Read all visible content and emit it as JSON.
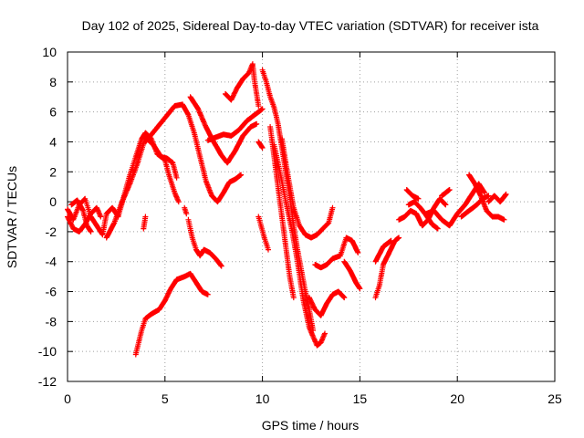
{
  "chart_data": {
    "type": "scatter",
    "title": "Day 102 of 2025, Sidereal Day-to-day VTEC variation (SDTVAR) for receiver ista",
    "xlabel": "GPS time / hours",
    "ylabel": "SDTVAR / TECUs",
    "xlim": [
      0,
      25
    ],
    "ylim": [
      -12,
      10
    ],
    "xticks": [
      0,
      5,
      10,
      15,
      20,
      25
    ],
    "yticks": [
      -12,
      -10,
      -8,
      -6,
      -4,
      -2,
      0,
      2,
      4,
      6,
      8,
      10
    ],
    "grid": true,
    "marker": "+",
    "series_color": "#ff0000",
    "tracks": [
      {
        "name": "track-1",
        "points": [
          [
            0.0,
            -0.5
          ],
          [
            0.3,
            -1.2
          ],
          [
            0.6,
            -0.2
          ],
          [
            0.9,
            0.2
          ],
          [
            1.2,
            -1.0
          ],
          [
            1.5,
            -1.6
          ],
          [
            1.8,
            -2.2
          ],
          [
            2.0,
            -0.8
          ],
          [
            2.3,
            -0.4
          ],
          [
            2.6,
            -1.0
          ],
          [
            2.9,
            0.4
          ],
          [
            3.2,
            1.8
          ],
          [
            3.5,
            3.0
          ],
          [
            3.8,
            4.2
          ],
          [
            4.0,
            4.6
          ],
          [
            4.3,
            4.2
          ],
          [
            4.6,
            3.2
          ],
          [
            5.0,
            2.8
          ],
          [
            5.2,
            1.8
          ],
          [
            5.5,
            0.6
          ],
          [
            5.7,
            0.0
          ]
        ]
      },
      {
        "name": "track-2",
        "points": [
          [
            0.0,
            -1.0
          ],
          [
            0.3,
            -1.8
          ],
          [
            0.6,
            -2.0
          ],
          [
            0.9,
            -1.5
          ],
          [
            1.2,
            -0.8
          ],
          [
            1.5,
            -0.4
          ],
          [
            1.7,
            -1.0
          ]
        ]
      },
      {
        "name": "track-3",
        "points": [
          [
            0.2,
            -0.2
          ],
          [
            0.5,
            0.1
          ],
          [
            0.8,
            -0.6
          ],
          [
            1.0,
            -1.6
          ],
          [
            1.2,
            -2.0
          ]
        ]
      },
      {
        "name": "track-4",
        "points": [
          [
            2.0,
            -2.4
          ],
          [
            2.4,
            -1.4
          ],
          [
            2.8,
            0.0
          ],
          [
            3.2,
            1.2
          ],
          [
            3.6,
            2.6
          ],
          [
            4.0,
            4.3
          ],
          [
            4.4,
            3.8
          ],
          [
            4.8,
            3.0
          ],
          [
            5.1,
            2.9
          ],
          [
            5.4,
            2.6
          ],
          [
            5.6,
            1.6
          ]
        ]
      },
      {
        "name": "track-5",
        "points": [
          [
            4.0,
            4.0
          ],
          [
            4.5,
            4.8
          ],
          [
            5.0,
            5.6
          ],
          [
            5.5,
            6.4
          ],
          [
            5.9,
            6.5
          ],
          [
            6.2,
            5.8
          ],
          [
            6.5,
            4.6
          ],
          [
            6.8,
            3.0
          ],
          [
            7.1,
            1.4
          ],
          [
            7.4,
            0.4
          ],
          [
            7.7,
            0.0
          ],
          [
            8.0,
            0.6
          ],
          [
            8.3,
            1.3
          ],
          [
            8.6,
            1.5
          ],
          [
            8.9,
            1.8
          ]
        ]
      },
      {
        "name": "track-6",
        "points": [
          [
            6.2,
            -1.2
          ],
          [
            6.4,
            -2.4
          ],
          [
            6.6,
            -3.2
          ],
          [
            6.8,
            -3.6
          ],
          [
            7.0,
            -3.2
          ],
          [
            7.3,
            -3.4
          ],
          [
            7.6,
            -3.8
          ],
          [
            7.9,
            -4.3
          ]
        ]
      },
      {
        "name": "track-7",
        "points": [
          [
            6.0,
            -0.4
          ],
          [
            6.1,
            -0.8
          ]
        ]
      },
      {
        "name": "track-8",
        "points": [
          [
            6.3,
            7.0
          ],
          [
            6.7,
            6.2
          ],
          [
            7.1,
            5.0
          ],
          [
            7.5,
            4.0
          ],
          [
            7.9,
            3.1
          ],
          [
            8.2,
            2.6
          ],
          [
            8.6,
            3.4
          ],
          [
            9.0,
            4.4
          ],
          [
            9.4,
            5.0
          ],
          [
            9.7,
            5.2
          ]
        ]
      },
      {
        "name": "track-9",
        "points": [
          [
            7.2,
            4.1
          ],
          [
            7.6,
            4.3
          ],
          [
            8.0,
            4.5
          ],
          [
            8.4,
            4.4
          ],
          [
            8.8,
            4.8
          ],
          [
            9.2,
            5.4
          ],
          [
            9.6,
            5.8
          ],
          [
            10.0,
            6.2
          ]
        ]
      },
      {
        "name": "track-10",
        "points": [
          [
            8.1,
            7.2
          ],
          [
            8.4,
            6.8
          ],
          [
            8.7,
            7.6
          ],
          [
            9.0,
            8.2
          ],
          [
            9.3,
            8.6
          ],
          [
            9.5,
            9.2
          ],
          [
            9.6,
            8.0
          ],
          [
            9.8,
            6.4
          ]
        ]
      },
      {
        "name": "track-11",
        "points": [
          [
            10.0,
            8.8
          ],
          [
            10.2,
            8.0
          ],
          [
            10.4,
            7.0
          ],
          [
            10.6,
            6.3
          ],
          [
            10.8,
            5.2
          ],
          [
            11.0,
            3.6
          ],
          [
            11.2,
            2.0
          ],
          [
            11.4,
            0.4
          ],
          [
            11.6,
            -1.6
          ],
          [
            11.8,
            -3.2
          ],
          [
            12.0,
            -4.6
          ],
          [
            12.2,
            -6.0
          ],
          [
            12.4,
            -7.2
          ],
          [
            12.6,
            -8.6
          ]
        ]
      },
      {
        "name": "track-12",
        "points": [
          [
            10.4,
            5.0
          ],
          [
            10.6,
            3.0
          ],
          [
            10.8,
            1.0
          ],
          [
            11.0,
            -1.0
          ],
          [
            11.2,
            -3.0
          ],
          [
            11.4,
            -5.0
          ],
          [
            11.6,
            -6.4
          ]
        ]
      },
      {
        "name": "track-13",
        "points": [
          [
            10.6,
            3.8
          ],
          [
            10.9,
            2.0
          ],
          [
            11.2,
            0.0
          ],
          [
            11.5,
            -1.8
          ],
          [
            11.8,
            -4.0
          ],
          [
            12.1,
            -6.6
          ],
          [
            12.4,
            -8.4
          ],
          [
            12.8,
            -9.6
          ],
          [
            13.0,
            -9.4
          ],
          [
            13.2,
            -8.8
          ]
        ]
      },
      {
        "name": "track-14",
        "points": [
          [
            11.0,
            4.2
          ],
          [
            11.3,
            1.8
          ],
          [
            11.6,
            -0.4
          ],
          [
            11.9,
            -1.6
          ],
          [
            12.2,
            -2.2
          ],
          [
            12.5,
            -2.4
          ],
          [
            12.8,
            -2.2
          ],
          [
            13.1,
            -1.8
          ],
          [
            13.4,
            -1.4
          ],
          [
            13.6,
            -0.4
          ]
        ]
      },
      {
        "name": "track-15",
        "points": [
          [
            9.8,
            -1.0
          ],
          [
            10.1,
            -2.4
          ],
          [
            10.3,
            -3.2
          ]
        ]
      },
      {
        "name": "track-16",
        "points": [
          [
            9.8,
            4.0
          ],
          [
            10.0,
            3.6
          ]
        ]
      },
      {
        "name": "track-17",
        "points": [
          [
            12.7,
            -4.2
          ],
          [
            13.0,
            -4.4
          ],
          [
            13.3,
            -4.2
          ],
          [
            13.6,
            -3.8
          ],
          [
            14.0,
            -3.6
          ],
          [
            14.3,
            -2.4
          ],
          [
            14.6,
            -2.6
          ],
          [
            14.9,
            -3.4
          ]
        ]
      },
      {
        "name": "track-18",
        "points": [
          [
            12.4,
            -6.4
          ],
          [
            12.7,
            -7.2
          ],
          [
            13.0,
            -7.6
          ],
          [
            13.3,
            -6.8
          ],
          [
            13.6,
            -6.2
          ],
          [
            13.9,
            -6.0
          ],
          [
            14.2,
            -6.4
          ]
        ]
      },
      {
        "name": "track-19",
        "points": [
          [
            14.2,
            -4.0
          ],
          [
            14.5,
            -4.6
          ],
          [
            14.8,
            -5.4
          ],
          [
            15.0,
            -5.8
          ]
        ]
      },
      {
        "name": "track-20",
        "points": [
          [
            15.8,
            -6.4
          ],
          [
            16.0,
            -5.6
          ],
          [
            16.2,
            -4.2
          ],
          [
            16.5,
            -3.4
          ],
          [
            16.8,
            -2.6
          ],
          [
            17.0,
            -2.4
          ]
        ]
      },
      {
        "name": "track-21",
        "points": [
          [
            15.8,
            -4.0
          ],
          [
            16.2,
            -3.0
          ],
          [
            16.6,
            -2.6
          ]
        ]
      },
      {
        "name": "track-22",
        "points": [
          [
            17.0,
            -1.2
          ],
          [
            17.3,
            -1.0
          ],
          [
            17.6,
            -0.6
          ],
          [
            17.9,
            -0.8
          ],
          [
            18.2,
            -1.6
          ],
          [
            18.5,
            -1.2
          ],
          [
            18.8,
            -0.4
          ],
          [
            19.1,
            0.2
          ],
          [
            19.4,
            -0.2
          ]
        ]
      },
      {
        "name": "track-23",
        "points": [
          [
            17.5,
            -0.2
          ],
          [
            17.8,
            0.0
          ],
          [
            18.1,
            -0.4
          ],
          [
            18.4,
            -0.9
          ],
          [
            18.7,
            -1.5
          ],
          [
            19.0,
            -1.8
          ]
        ]
      },
      {
        "name": "track-24",
        "points": [
          [
            17.4,
            0.8
          ],
          [
            17.7,
            0.4
          ],
          [
            18.0,
            0.2
          ]
        ]
      },
      {
        "name": "track-25",
        "points": [
          [
            18.4,
            -0.8
          ],
          [
            18.8,
            -0.6
          ],
          [
            19.2,
            -1.2
          ],
          [
            19.6,
            -1.6
          ],
          [
            20.0,
            -0.8
          ],
          [
            20.4,
            -0.2
          ],
          [
            20.8,
            0.6
          ],
          [
            21.1,
            1.2
          ],
          [
            21.4,
            0.6
          ]
        ]
      },
      {
        "name": "track-26",
        "points": [
          [
            19.2,
            0.4
          ],
          [
            19.6,
            0.8
          ]
        ]
      },
      {
        "name": "track-27",
        "points": [
          [
            20.2,
            -1.0
          ],
          [
            20.6,
            -0.6
          ],
          [
            21.0,
            -0.2
          ],
          [
            21.3,
            0.2
          ],
          [
            21.6,
            0.4
          ]
        ]
      },
      {
        "name": "track-28",
        "points": [
          [
            20.6,
            1.8
          ],
          [
            20.9,
            1.2
          ],
          [
            21.2,
            0.4
          ],
          [
            21.5,
            -0.6
          ],
          [
            21.8,
            -1.0
          ],
          [
            22.1,
            -1.0
          ],
          [
            22.4,
            -1.2
          ]
        ]
      },
      {
        "name": "track-29",
        "points": [
          [
            21.6,
            0.0
          ],
          [
            21.9,
            0.4
          ],
          [
            22.2,
            0.0
          ],
          [
            22.5,
            0.5
          ]
        ]
      },
      {
        "name": "track-30",
        "points": [
          [
            3.5,
            -10.2
          ],
          [
            3.8,
            -8.6
          ],
          [
            4.0,
            -7.8
          ],
          [
            4.3,
            -7.5
          ],
          [
            4.7,
            -7.2
          ],
          [
            5.0,
            -6.6
          ],
          [
            5.3,
            -5.8
          ],
          [
            5.6,
            -5.2
          ],
          [
            6.0,
            -5.0
          ],
          [
            6.3,
            -4.8
          ],
          [
            6.6,
            -5.4
          ],
          [
            6.9,
            -6.0
          ],
          [
            7.2,
            -6.2
          ]
        ]
      },
      {
        "name": "track-31",
        "points": [
          [
            3.9,
            -1.8
          ],
          [
            4.0,
            -1.0
          ]
        ]
      }
    ]
  }
}
